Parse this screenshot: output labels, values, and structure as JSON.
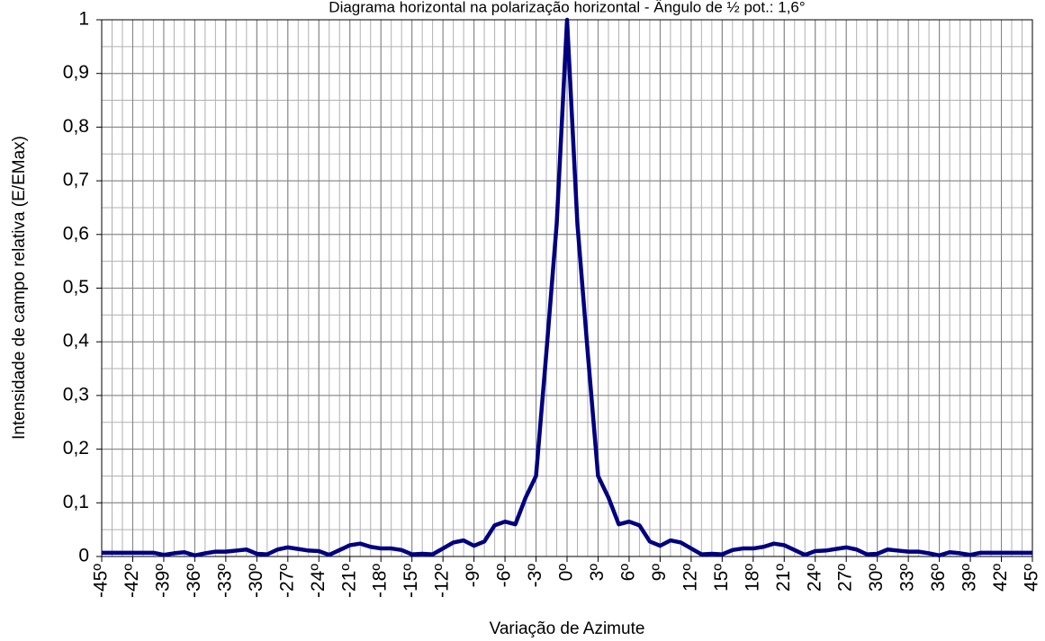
{
  "chart_data": {
    "type": "line",
    "title": "Diagrama horizontal na polarização horizontal - Ângulo de ½ pot.: 1,6°",
    "x_label": "Variação de Azimute",
    "y_label": "Intensidade de campo relativa (E/EMax)",
    "x": [
      -45,
      -44,
      -43,
      -42,
      -41,
      -40,
      -39,
      -38,
      -37,
      -36,
      -35,
      -34,
      -33,
      -32,
      -31,
      -30,
      -29,
      -28,
      -27,
      -26,
      -25,
      -24,
      -23,
      -22,
      -21,
      -20,
      -19,
      -18,
      -17,
      -16,
      -15,
      -14,
      -13,
      -12,
      -11,
      -10,
      -9,
      -8,
      -7,
      -6,
      -5,
      -4,
      -3,
      -2,
      -1,
      0,
      1,
      2,
      3,
      4,
      5,
      6,
      7,
      8,
      9,
      10,
      11,
      12,
      13,
      14,
      15,
      16,
      17,
      18,
      19,
      20,
      21,
      22,
      23,
      24,
      25,
      26,
      27,
      28,
      29,
      30,
      31,
      32,
      33,
      34,
      35,
      36,
      37,
      38,
      39,
      40,
      41,
      42,
      43,
      44,
      45
    ],
    "series": [
      {
        "name": "E/EMax",
        "color": "#000080",
        "values": [
          0.007,
          0.007,
          0.007,
          0.007,
          0.007,
          0.007,
          0.003,
          0.006,
          0.008,
          0.002,
          0.006,
          0.009,
          0.009,
          0.011,
          0.013,
          0.005,
          0.004,
          0.013,
          0.017,
          0.014,
          0.011,
          0.01,
          0.003,
          0.012,
          0.021,
          0.024,
          0.018,
          0.015,
          0.015,
          0.012,
          0.004,
          0.005,
          0.004,
          0.015,
          0.026,
          0.03,
          0.02,
          0.028,
          0.058,
          0.065,
          0.06,
          0.11,
          0.15,
          0.38,
          0.62,
          1.0,
          0.62,
          0.38,
          0.15,
          0.11,
          0.06,
          0.065,
          0.058,
          0.028,
          0.02,
          0.03,
          0.026,
          0.015,
          0.004,
          0.005,
          0.004,
          0.012,
          0.015,
          0.015,
          0.018,
          0.024,
          0.021,
          0.012,
          0.003,
          0.01,
          0.011,
          0.014,
          0.017,
          0.013,
          0.004,
          0.005,
          0.013,
          0.011,
          0.009,
          0.009,
          0.006,
          0.002,
          0.008,
          0.006,
          0.003,
          0.007,
          0.007,
          0.007,
          0.007,
          0.007,
          0.007
        ]
      }
    ],
    "xlim": [
      -45,
      45
    ],
    "xticks": [
      {
        "value": -45,
        "label": "-45º"
      },
      {
        "value": -42,
        "label": "-42º"
      },
      {
        "value": -39,
        "label": "-39º"
      },
      {
        "value": -36,
        "label": "-36º"
      },
      {
        "value": -33,
        "label": "-33º"
      },
      {
        "value": -30,
        "label": "-30º"
      },
      {
        "value": -27,
        "label": "-27º"
      },
      {
        "value": -24,
        "label": "-24º"
      },
      {
        "value": -21,
        "label": "-21º"
      },
      {
        "value": -18,
        "label": "-18º"
      },
      {
        "value": -15,
        "label": "-15º"
      },
      {
        "value": -12,
        "label": "-12º"
      },
      {
        "value": -9,
        "label": "-9º"
      },
      {
        "value": -6,
        "label": "-6º"
      },
      {
        "value": -3,
        "label": "-3º"
      },
      {
        "value": 0,
        "label": "0º"
      },
      {
        "value": 3,
        "label": "3º"
      },
      {
        "value": 6,
        "label": "6º"
      },
      {
        "value": 9,
        "label": "9º"
      },
      {
        "value": 12,
        "label": "12º"
      },
      {
        "value": 15,
        "label": "15º"
      },
      {
        "value": 18,
        "label": "18º"
      },
      {
        "value": 21,
        "label": "21º"
      },
      {
        "value": 24,
        "label": "24º"
      },
      {
        "value": 27,
        "label": "27º"
      },
      {
        "value": 30,
        "label": "30º"
      },
      {
        "value": 33,
        "label": "33º"
      },
      {
        "value": 36,
        "label": "36º"
      },
      {
        "value": 39,
        "label": "39º"
      },
      {
        "value": 42,
        "label": "42º"
      },
      {
        "value": 45,
        "label": "45º"
      }
    ],
    "ylim": [
      0,
      1
    ],
    "yticks": [
      0,
      {
        "value": 0.1,
        "label": "0,1"
      },
      {
        "value": 0.2,
        "label": "0,2"
      },
      {
        "value": 0.3,
        "label": "0,3"
      },
      {
        "value": 0.4,
        "label": "0,4"
      },
      {
        "value": 0.5,
        "label": "0,5"
      },
      {
        "value": 0.6,
        "label": "0,6"
      },
      {
        "value": 0.7,
        "label": "0,7"
      },
      {
        "value": 0.8,
        "label": "0,8"
      },
      {
        "value": 0.9,
        "label": "0,9"
      },
      1
    ],
    "grid": true,
    "minor_grid": {
      "x": 1,
      "y": 0.05
    },
    "legend": false
  }
}
